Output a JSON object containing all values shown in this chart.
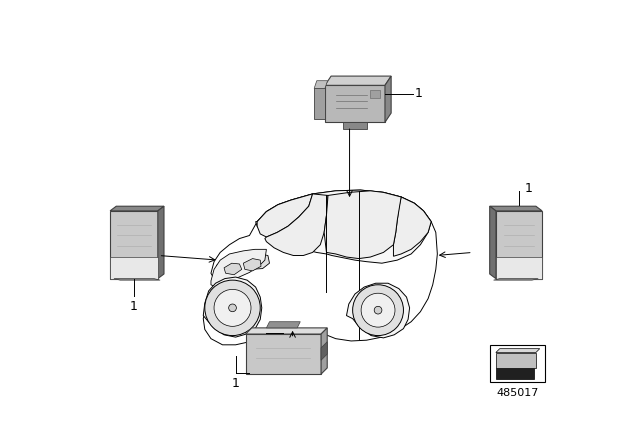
{
  "background_color": "#ffffff",
  "part_number": "485017",
  "fig_width": 6.4,
  "fig_height": 4.48,
  "dpi": 100,
  "car_edge": "#000000",
  "car_lw": 0.7,
  "sensor_face_color": "#c0c0c0",
  "sensor_top_color": "#d8d8d8",
  "sensor_side_color": "#909090",
  "sensor_dark_color": "#707070",
  "sensor_edge": "#404040",
  "sensor_lw": 0.8,
  "label": "1",
  "label_fontsize": 9,
  "partnum_fontsize": 8,
  "line_color": "#000000",
  "line_lw": 0.7
}
